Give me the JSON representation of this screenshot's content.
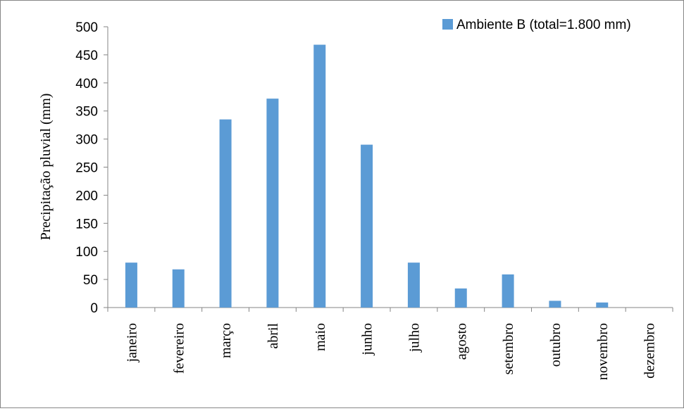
{
  "chart_data": {
    "type": "bar",
    "title": "",
    "xlabel": "",
    "ylabel": "Precipitação pluvial (mm)",
    "ylim": [
      0,
      500
    ],
    "yticks": [
      0,
      50,
      100,
      150,
      200,
      250,
      300,
      350,
      400,
      450,
      500
    ],
    "grid": false,
    "legend_position": "top-right",
    "categories": [
      "janeiro",
      "fevereiro",
      "março",
      "abril",
      "maio",
      "junho",
      "julho",
      "agosto",
      "setembro",
      "outubro",
      "novembro",
      "dezembro"
    ],
    "series": [
      {
        "name": "Ambiente B (total=1.800 mm)",
        "color": "#5b9bd5",
        "values": [
          80,
          68,
          335,
          372,
          468,
          290,
          80,
          34,
          59,
          12,
          9,
          0
        ]
      }
    ]
  }
}
